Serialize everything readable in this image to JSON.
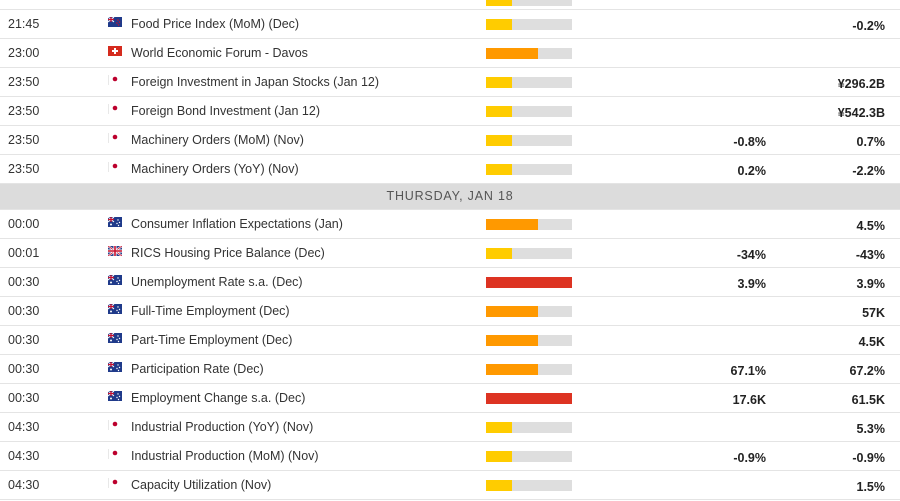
{
  "colors": {
    "impact_low": "#ffcc00",
    "impact_medium": "#ff9900",
    "impact_high": "#dd3322",
    "impact_track": "#dedede",
    "day_header_bg": "#dcdcdc"
  },
  "partial_top_row": {
    "impact": "low"
  },
  "day1_rows": [
    {
      "time": "21:45",
      "country": "NZ",
      "event": "Food Price Index (MoM) (Dec)",
      "impact": "low",
      "forecast": "",
      "previous": "-0.2%"
    },
    {
      "time": "23:00",
      "country": "CH",
      "event": "World Economic Forum - Davos",
      "impact": "medium",
      "forecast": "",
      "previous": ""
    },
    {
      "time": "23:50",
      "country": "JP",
      "event": "Foreign Investment in Japan Stocks (Jan 12)",
      "impact": "low",
      "forecast": "",
      "previous": "¥296.2B"
    },
    {
      "time": "23:50",
      "country": "JP",
      "event": "Foreign Bond Investment (Jan 12)",
      "impact": "low",
      "forecast": "",
      "previous": "¥542.3B"
    },
    {
      "time": "23:50",
      "country": "JP",
      "event": "Machinery Orders (MoM) (Nov)",
      "impact": "low",
      "forecast": "-0.8%",
      "previous": "0.7%"
    },
    {
      "time": "23:50",
      "country": "JP",
      "event": "Machinery Orders (YoY) (Nov)",
      "impact": "low",
      "forecast": "0.2%",
      "previous": "-2.2%"
    }
  ],
  "day_header": "THURSDAY, JAN 18",
  "day2_rows": [
    {
      "time": "00:00",
      "country": "AU",
      "event": "Consumer Inflation Expectations (Jan)",
      "impact": "medium",
      "forecast": "",
      "previous": "4.5%"
    },
    {
      "time": "00:01",
      "country": "GB",
      "event": "RICS Housing Price Balance (Dec)",
      "impact": "low",
      "forecast": "-34%",
      "previous": "-43%"
    },
    {
      "time": "00:30",
      "country": "AU",
      "event": "Unemployment Rate s.a. (Dec)",
      "impact": "high",
      "forecast": "3.9%",
      "previous": "3.9%"
    },
    {
      "time": "00:30",
      "country": "AU",
      "event": "Full-Time Employment (Dec)",
      "impact": "medium",
      "forecast": "",
      "previous": "57K"
    },
    {
      "time": "00:30",
      "country": "AU",
      "event": "Part-Time Employment (Dec)",
      "impact": "medium",
      "forecast": "",
      "previous": "4.5K"
    },
    {
      "time": "00:30",
      "country": "AU",
      "event": "Participation Rate (Dec)",
      "impact": "medium",
      "forecast": "67.1%",
      "previous": "67.2%"
    },
    {
      "time": "00:30",
      "country": "AU",
      "event": "Employment Change s.a. (Dec)",
      "impact": "high",
      "forecast": "17.6K",
      "previous": "61.5K"
    },
    {
      "time": "04:30",
      "country": "JP",
      "event": "Industrial Production (YoY) (Nov)",
      "impact": "low",
      "forecast": "",
      "previous": "5.3%"
    },
    {
      "time": "04:30",
      "country": "JP",
      "event": "Industrial Production (MoM) (Nov)",
      "impact": "low",
      "forecast": "-0.9%",
      "previous": "-0.9%"
    },
    {
      "time": "04:30",
      "country": "JP",
      "event": "Capacity Utilization (Nov)",
      "impact": "low",
      "forecast": "",
      "previous": "1.5%"
    }
  ]
}
